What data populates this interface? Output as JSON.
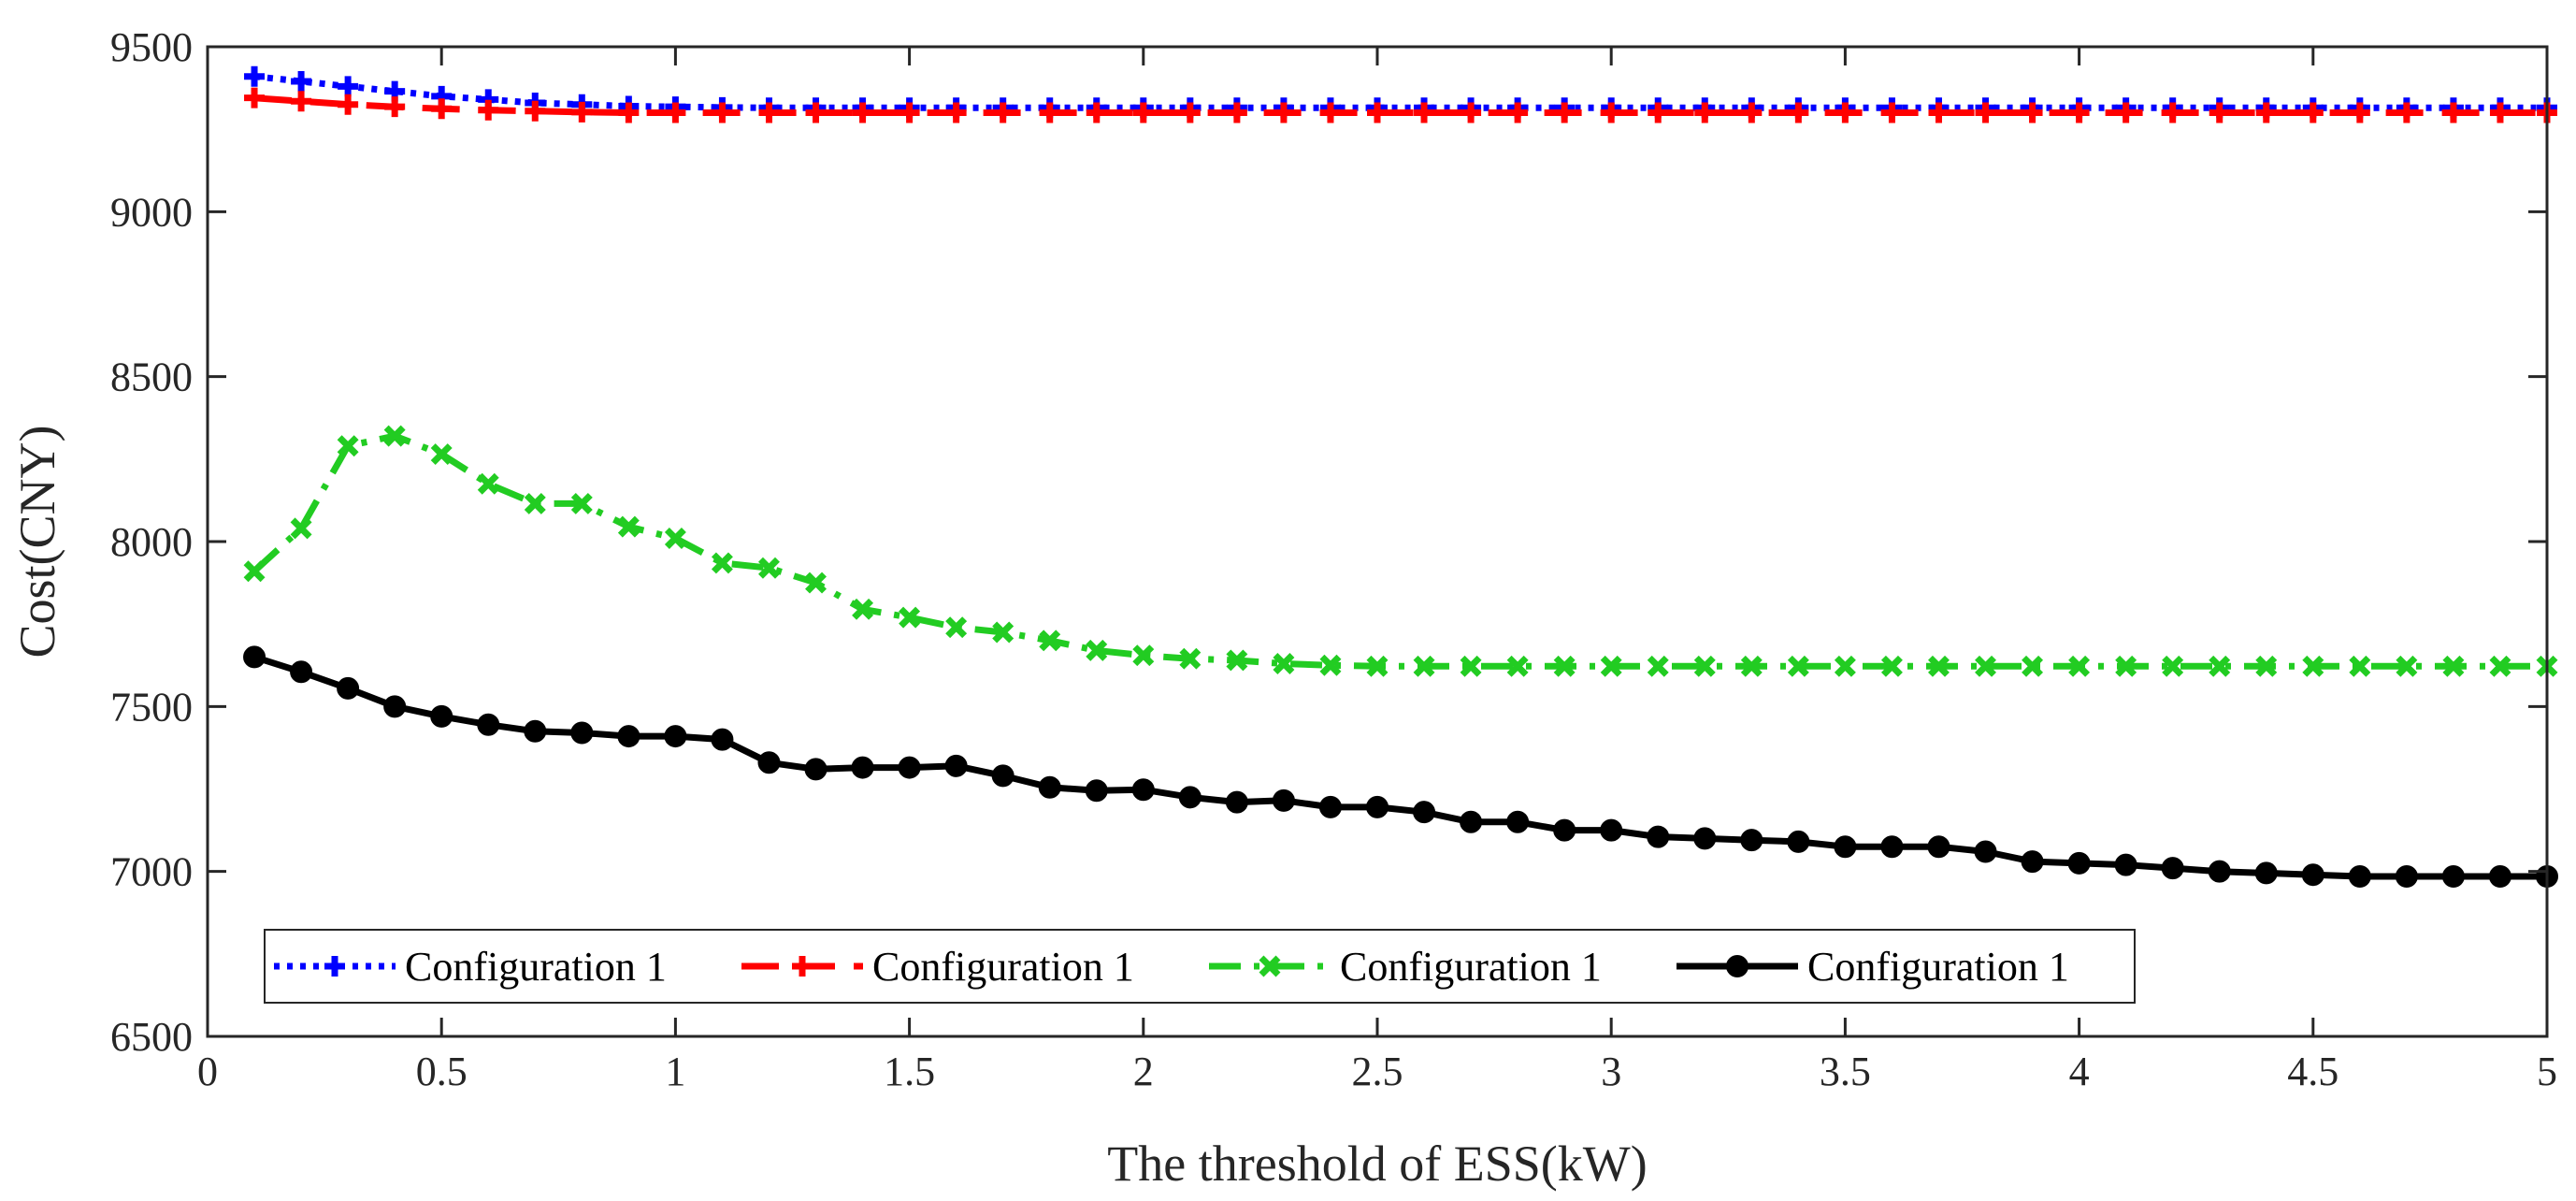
{
  "chart_data": {
    "type": "line",
    "title": "",
    "xlabel": "The threshold of ESS(kW)",
    "ylabel": "Cost(CNY)",
    "xlim": [
      0,
      5
    ],
    "ylim": [
      6500,
      9500
    ],
    "xticks": [
      0,
      0.5,
      1,
      1.5,
      2,
      2.5,
      3,
      3.5,
      4,
      4.5,
      5
    ],
    "xtick_labels": [
      "0",
      "0.5",
      "1",
      "1.5",
      "2",
      "2.5",
      "3",
      "3.5",
      "4",
      "4.5",
      "5"
    ],
    "yticks": [
      6500,
      7000,
      7500,
      8000,
      8500,
      9000,
      9500
    ],
    "ytick_labels": [
      "6500",
      "7000",
      "7500",
      "8000",
      "8500",
      "9000",
      "9500"
    ],
    "grid": false,
    "legend_position": "bottom-left",
    "x": [
      0.1,
      0.2,
      0.3,
      0.4,
      0.5,
      0.6,
      0.7,
      0.8,
      0.9,
      1.0,
      1.1,
      1.2,
      1.3,
      1.4,
      1.5,
      1.6,
      1.7,
      1.8,
      1.9,
      2.0,
      2.1,
      2.2,
      2.3,
      2.4,
      2.5,
      2.6,
      2.7,
      2.8,
      2.9,
      3.0,
      3.1,
      3.2,
      3.3,
      3.4,
      3.5,
      3.6,
      3.7,
      3.8,
      3.9,
      4.0,
      4.1,
      4.2,
      4.3,
      4.4,
      4.5,
      4.6,
      4.7,
      4.8,
      4.9,
      5.0
    ],
    "series": [
      {
        "name": "Configuration 1",
        "color": "#0000ff",
        "line_style": "dotted",
        "marker": "plus",
        "values": [
          9410,
          9395,
          9380,
          9365,
          9350,
          9340,
          9330,
          9325,
          9320,
          9318,
          9316,
          9315,
          9315,
          9315,
          9315,
          9315,
          9315,
          9315,
          9315,
          9315,
          9315,
          9315,
          9315,
          9315,
          9315,
          9315,
          9315,
          9315,
          9315,
          9315,
          9315,
          9315,
          9315,
          9315,
          9315,
          9315,
          9315,
          9315,
          9315,
          9315,
          9315,
          9315,
          9315,
          9315,
          9315,
          9315,
          9315,
          9315,
          9315,
          9315
        ]
      },
      {
        "name": "Configuration 1",
        "color": "#ff0000",
        "line_style": "dashed",
        "marker": "plus",
        "values": [
          9345,
          9335,
          9325,
          9318,
          9312,
          9308,
          9305,
          9302,
          9300,
          9300,
          9300,
          9300,
          9300,
          9300,
          9300,
          9300,
          9300,
          9300,
          9300,
          9300,
          9300,
          9300,
          9300,
          9300,
          9300,
          9300,
          9300,
          9300,
          9300,
          9300,
          9300,
          9300,
          9300,
          9300,
          9300,
          9300,
          9300,
          9300,
          9300,
          9300,
          9300,
          9300,
          9300,
          9300,
          9300,
          9300,
          9300,
          9300,
          9300,
          9300
        ]
      },
      {
        "name": "Configuration 1",
        "color": "#22cc22",
        "line_style": "dashdot",
        "marker": "x",
        "values": [
          7910,
          8040,
          8290,
          8320,
          8265,
          8175,
          8115,
          8115,
          8045,
          8010,
          7935,
          7920,
          7875,
          7795,
          7770,
          7740,
          7725,
          7700,
          7670,
          7655,
          7645,
          7640,
          7630,
          7625,
          7622,
          7622,
          7622,
          7622,
          7622,
          7622,
          7622,
          7622,
          7622,
          7622,
          7622,
          7622,
          7622,
          7622,
          7622,
          7622,
          7622,
          7622,
          7622,
          7622,
          7622,
          7622,
          7622,
          7622,
          7622,
          7622
        ]
      },
      {
        "name": "Configuration 1",
        "color": "#000000",
        "line_style": "solid",
        "marker": "circle",
        "values": [
          7650,
          7605,
          7555,
          7500,
          7470,
          7445,
          7425,
          7420,
          7410,
          7410,
          7400,
          7330,
          7310,
          7315,
          7315,
          7320,
          7290,
          7255,
          7245,
          7248,
          7225,
          7210,
          7215,
          7195,
          7195,
          7180,
          7150,
          7150,
          7125,
          7125,
          7105,
          7100,
          7095,
          7090,
          7075,
          7075,
          7075,
          7060,
          7030,
          7025,
          7020,
          7010,
          7000,
          6995,
          6990,
          6985,
          6985,
          6985,
          6985,
          6985
        ]
      }
    ]
  }
}
